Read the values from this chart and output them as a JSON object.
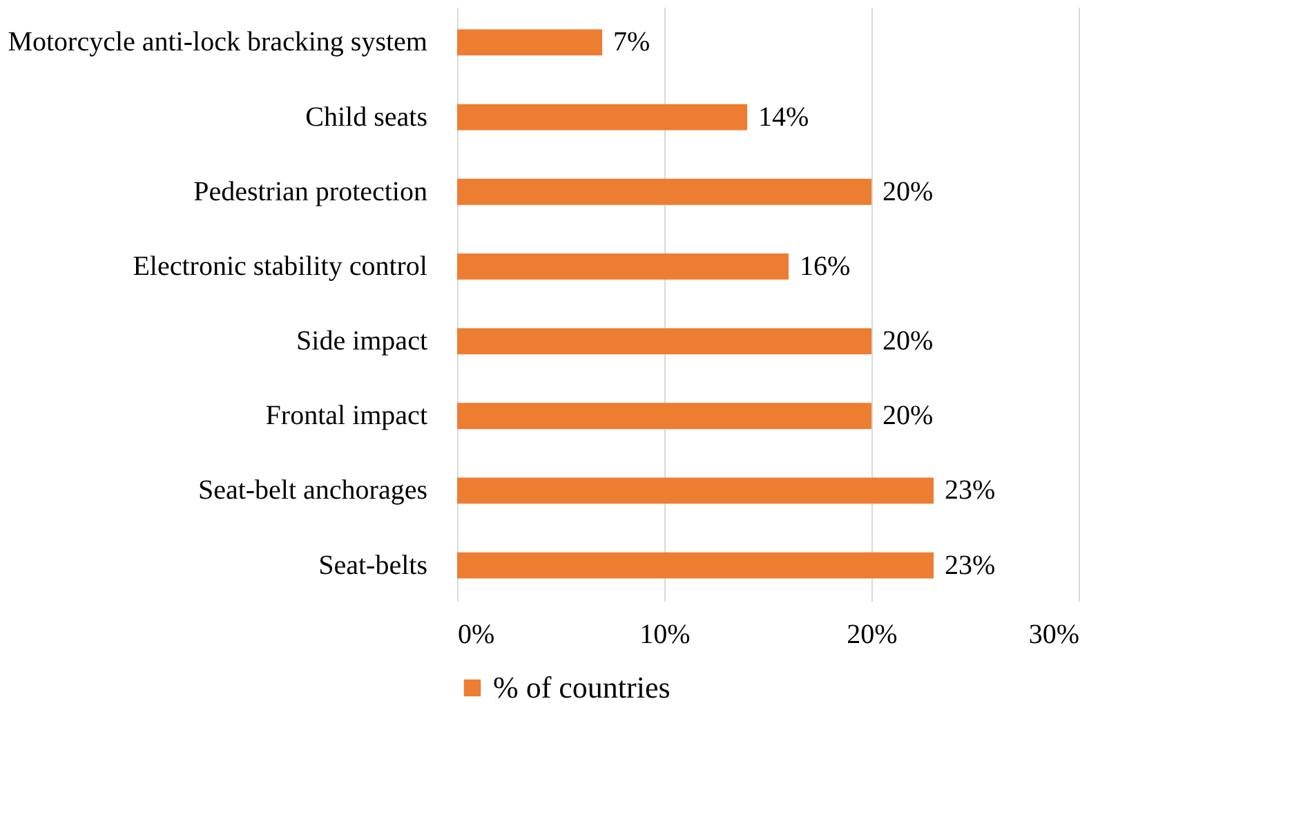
{
  "chart_data": {
    "type": "bar",
    "orientation": "horizontal",
    "categories": [
      "Motorcycle anti-lock bracking system",
      "Child seats",
      "Pedestrian protection",
      "Electronic stability control",
      "Side impact",
      "Frontal impact",
      "Seat-belt anchorages",
      "Seat-belts"
    ],
    "series": [
      {
        "name": "% of countries",
        "color": "#ed7d31",
        "values": [
          7,
          14,
          20,
          16,
          20,
          20,
          23,
          23
        ],
        "value_labels": [
          "7%",
          "14%",
          "20%",
          "16%",
          "20%",
          "20%",
          "23%",
          "23%"
        ]
      }
    ],
    "xlim": [
      0,
      30
    ],
    "xticks": [
      {
        "value": 0,
        "label": "0%"
      },
      {
        "value": 10,
        "label": "10%"
      },
      {
        "value": 20,
        "label": "20%"
      },
      {
        "value": 30,
        "label": "30%"
      }
    ],
    "grid": "x",
    "legend": "bottom"
  }
}
